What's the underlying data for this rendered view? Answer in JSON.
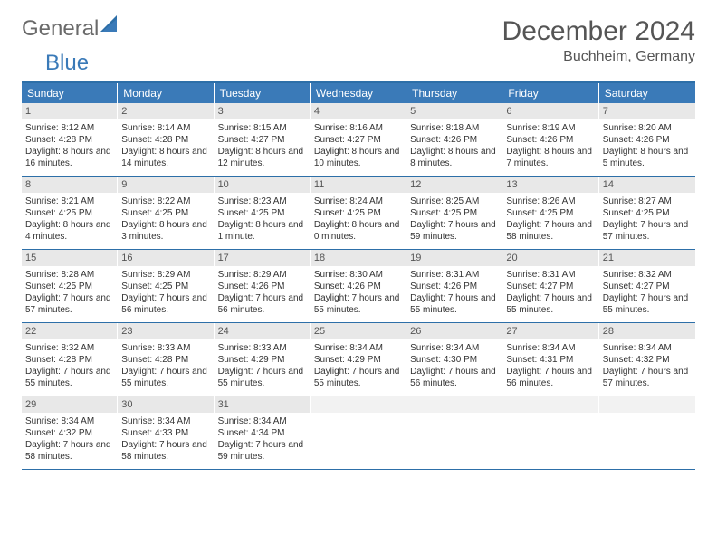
{
  "logo": {
    "part1": "General",
    "part2": "Blue"
  },
  "title": "December 2024",
  "location": "Buchheim, Germany",
  "colors": {
    "header_blue": "#3a7ab8",
    "rule_blue": "#2d6fa8",
    "day_bg": "#e8e8e8",
    "text": "#333333"
  },
  "dow": [
    "Sunday",
    "Monday",
    "Tuesday",
    "Wednesday",
    "Thursday",
    "Friday",
    "Saturday"
  ],
  "weeks": [
    [
      {
        "n": "1",
        "sr": "8:12 AM",
        "ss": "4:28 PM",
        "dl": "8 hours and 16 minutes."
      },
      {
        "n": "2",
        "sr": "8:14 AM",
        "ss": "4:28 PM",
        "dl": "8 hours and 14 minutes."
      },
      {
        "n": "3",
        "sr": "8:15 AM",
        "ss": "4:27 PM",
        "dl": "8 hours and 12 minutes."
      },
      {
        "n": "4",
        "sr": "8:16 AM",
        "ss": "4:27 PM",
        "dl": "8 hours and 10 minutes."
      },
      {
        "n": "5",
        "sr": "8:18 AM",
        "ss": "4:26 PM",
        "dl": "8 hours and 8 minutes."
      },
      {
        "n": "6",
        "sr": "8:19 AM",
        "ss": "4:26 PM",
        "dl": "8 hours and 7 minutes."
      },
      {
        "n": "7",
        "sr": "8:20 AM",
        "ss": "4:26 PM",
        "dl": "8 hours and 5 minutes."
      }
    ],
    [
      {
        "n": "8",
        "sr": "8:21 AM",
        "ss": "4:25 PM",
        "dl": "8 hours and 4 minutes."
      },
      {
        "n": "9",
        "sr": "8:22 AM",
        "ss": "4:25 PM",
        "dl": "8 hours and 3 minutes."
      },
      {
        "n": "10",
        "sr": "8:23 AM",
        "ss": "4:25 PM",
        "dl": "8 hours and 1 minute."
      },
      {
        "n": "11",
        "sr": "8:24 AM",
        "ss": "4:25 PM",
        "dl": "8 hours and 0 minutes."
      },
      {
        "n": "12",
        "sr": "8:25 AM",
        "ss": "4:25 PM",
        "dl": "7 hours and 59 minutes."
      },
      {
        "n": "13",
        "sr": "8:26 AM",
        "ss": "4:25 PM",
        "dl": "7 hours and 58 minutes."
      },
      {
        "n": "14",
        "sr": "8:27 AM",
        "ss": "4:25 PM",
        "dl": "7 hours and 57 minutes."
      }
    ],
    [
      {
        "n": "15",
        "sr": "8:28 AM",
        "ss": "4:25 PM",
        "dl": "7 hours and 57 minutes."
      },
      {
        "n": "16",
        "sr": "8:29 AM",
        "ss": "4:25 PM",
        "dl": "7 hours and 56 minutes."
      },
      {
        "n": "17",
        "sr": "8:29 AM",
        "ss": "4:26 PM",
        "dl": "7 hours and 56 minutes."
      },
      {
        "n": "18",
        "sr": "8:30 AM",
        "ss": "4:26 PM",
        "dl": "7 hours and 55 minutes."
      },
      {
        "n": "19",
        "sr": "8:31 AM",
        "ss": "4:26 PM",
        "dl": "7 hours and 55 minutes."
      },
      {
        "n": "20",
        "sr": "8:31 AM",
        "ss": "4:27 PM",
        "dl": "7 hours and 55 minutes."
      },
      {
        "n": "21",
        "sr": "8:32 AM",
        "ss": "4:27 PM",
        "dl": "7 hours and 55 minutes."
      }
    ],
    [
      {
        "n": "22",
        "sr": "8:32 AM",
        "ss": "4:28 PM",
        "dl": "7 hours and 55 minutes."
      },
      {
        "n": "23",
        "sr": "8:33 AM",
        "ss": "4:28 PM",
        "dl": "7 hours and 55 minutes."
      },
      {
        "n": "24",
        "sr": "8:33 AM",
        "ss": "4:29 PM",
        "dl": "7 hours and 55 minutes."
      },
      {
        "n": "25",
        "sr": "8:34 AM",
        "ss": "4:29 PM",
        "dl": "7 hours and 55 minutes."
      },
      {
        "n": "26",
        "sr": "8:34 AM",
        "ss": "4:30 PM",
        "dl": "7 hours and 56 minutes."
      },
      {
        "n": "27",
        "sr": "8:34 AM",
        "ss": "4:31 PM",
        "dl": "7 hours and 56 minutes."
      },
      {
        "n": "28",
        "sr": "8:34 AM",
        "ss": "4:32 PM",
        "dl": "7 hours and 57 minutes."
      }
    ],
    [
      {
        "n": "29",
        "sr": "8:34 AM",
        "ss": "4:32 PM",
        "dl": "7 hours and 58 minutes."
      },
      {
        "n": "30",
        "sr": "8:34 AM",
        "ss": "4:33 PM",
        "dl": "7 hours and 58 minutes."
      },
      {
        "n": "31",
        "sr": "8:34 AM",
        "ss": "4:34 PM",
        "dl": "7 hours and 59 minutes."
      },
      null,
      null,
      null,
      null
    ]
  ],
  "labels": {
    "sunrise": "Sunrise: ",
    "sunset": "Sunset: ",
    "daylight": "Daylight: "
  }
}
